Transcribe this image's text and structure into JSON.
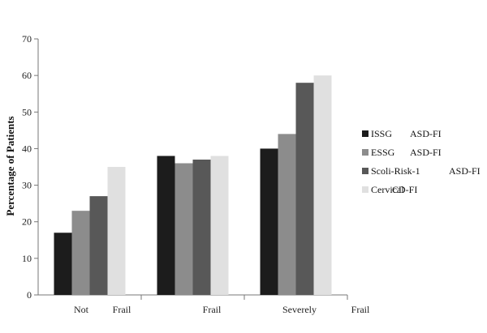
{
  "chart_data": {
    "type": "bar",
    "title": "",
    "xlabel": "",
    "ylabel": "Percentage of Patients",
    "ylim": [
      0,
      70
    ],
    "yticks": [
      0,
      10,
      20,
      30,
      40,
      50,
      60,
      70
    ],
    "grid": false,
    "legend_position": "right",
    "categories": [
      "Not Frail",
      "Frail",
      "Severely Frail"
    ],
    "category_label_parts": [
      [
        "Not",
        "Frail"
      ],
      [
        "Frail"
      ],
      [
        "Severely",
        "Frail"
      ]
    ],
    "series": [
      {
        "name": "ISSG ASD-FI",
        "legend_parts": [
          "ISSG",
          "ASD-FI"
        ],
        "color": "#1c1c1c",
        "values": [
          17,
          38,
          40
        ]
      },
      {
        "name": "ESSG ASD-FI",
        "legend_parts": [
          "ESSG",
          "ASD-FI"
        ],
        "color": "#8c8c8c",
        "values": [
          23,
          36,
          44
        ]
      },
      {
        "name": "Scoli-Risk-1 ASD-FI",
        "legend_parts": [
          "Scoli-Risk-1",
          "ASD-FI"
        ],
        "color": "#585858",
        "values": [
          27,
          37,
          58
        ]
      },
      {
        "name": "Cervical CD-FI",
        "legend_parts": [
          "Cervical",
          "CD-FI"
        ],
        "color": "#e0e0e0",
        "values": [
          35,
          38,
          60
        ]
      }
    ]
  }
}
